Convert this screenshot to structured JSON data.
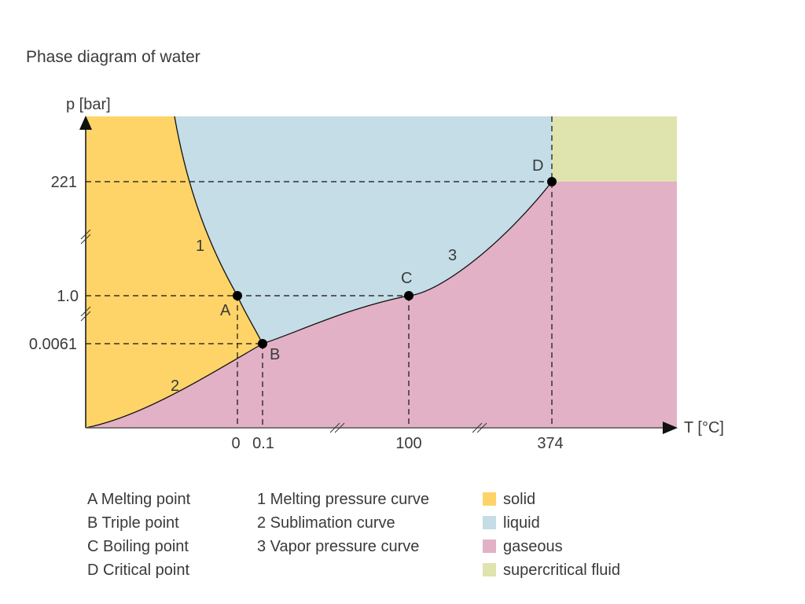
{
  "title": "Phase diagram of water",
  "axes": {
    "y_label": "p [bar]",
    "x_label": "T [°C]",
    "y_ticks": [
      "221",
      "1.0",
      "0.0061"
    ],
    "x_ticks": [
      "0",
      "0.1",
      "100",
      "374"
    ]
  },
  "points": [
    {
      "id": "A",
      "name": "Melting point",
      "T": 0,
      "p": 1.0
    },
    {
      "id": "B",
      "name": "Triple point",
      "T": 0.1,
      "p": 0.0061
    },
    {
      "id": "C",
      "name": "Boiling point",
      "T": 100,
      "p": 1.0
    },
    {
      "id": "D",
      "name": "Critical point",
      "T": 374,
      "p": 221
    }
  ],
  "curves": [
    {
      "id": "1",
      "name": "Melting pressure curve"
    },
    {
      "id": "2",
      "name": "Sublimation curve"
    },
    {
      "id": "3",
      "name": "Vapor pressure curve"
    }
  ],
  "legend": {
    "points": [
      "A Melting point",
      "B Triple point",
      "C Boiling point",
      "D Critical point"
    ],
    "curves": [
      "1 Melting pressure curve",
      "2 Sublimation curve",
      "3 Vapor pressure curve"
    ],
    "phases": [
      {
        "label": "solid",
        "color": "#fed468"
      },
      {
        "label": "liquid",
        "color": "#c4dde6"
      },
      {
        "label": "gaseous",
        "color": "#e2b1c6"
      },
      {
        "label": "supercritical fluid",
        "color": "#dfe3ad"
      }
    ]
  }
}
